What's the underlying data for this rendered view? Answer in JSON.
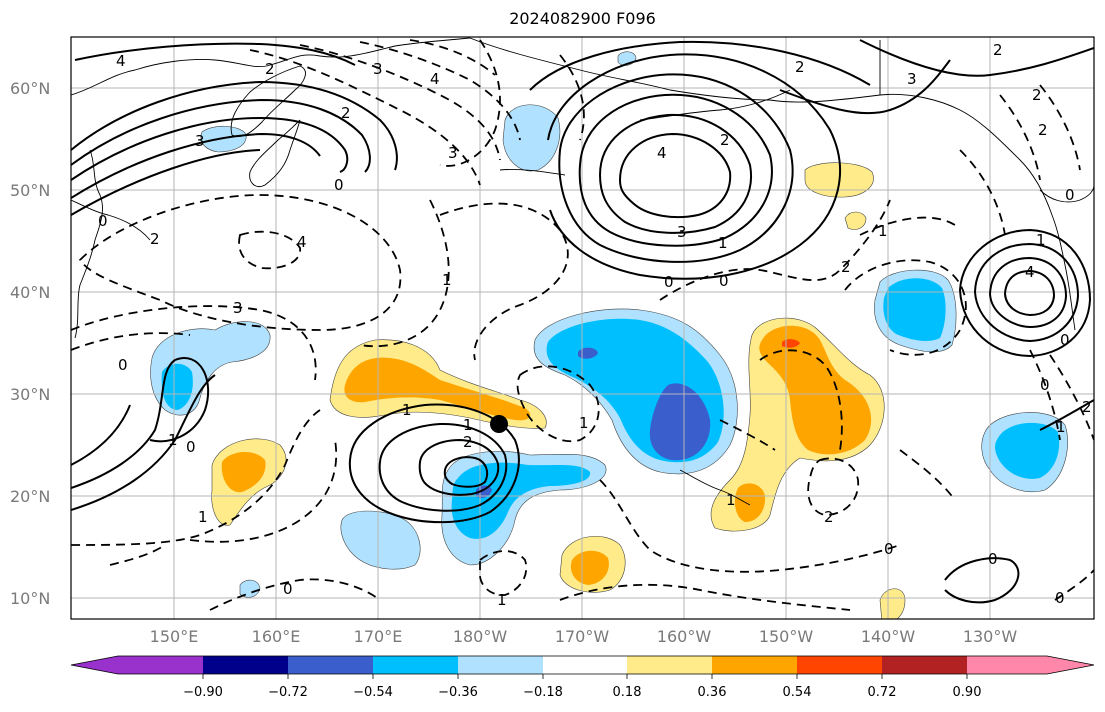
{
  "title": "2024082900 F096",
  "map": {
    "lat_labels": [
      "60°N",
      "50°N",
      "40°N",
      "30°N",
      "20°N",
      "10°N"
    ],
    "lon_labels": [
      "150°E",
      "160°E",
      "170°E",
      "180°W",
      "170°W",
      "160°W",
      "150°W",
      "140°W",
      "130°W"
    ],
    "contour_labels": [
      "4",
      "2",
      "3",
      "4",
      "2",
      "3",
      "0",
      "2",
      "3",
      "0",
      "2",
      "4",
      "2",
      "3",
      "1",
      "2",
      "4",
      "3",
      "1",
      "0",
      "0",
      "3",
      "2",
      "1",
      "1",
      "0",
      "4",
      "2",
      "0",
      "2",
      "0",
      "0",
      "1",
      "0",
      "1",
      "2",
      "1",
      "1",
      "1",
      "2",
      "0",
      "1",
      "0",
      "1",
      "0",
      "2",
      "0",
      "1"
    ],
    "marker": "storm-center"
  },
  "colorbar": {
    "ticks": [
      "−0.90",
      "−0.72",
      "−0.54",
      "−0.36",
      "−0.18",
      "0.18",
      "0.36",
      "0.54",
      "0.72",
      "0.90"
    ],
    "colors": [
      "#9932cc",
      "#00008b",
      "#3a5fcd",
      "#00bfff",
      "#b0e2ff",
      "#ffffff",
      "#ffeb8a",
      "#ffa500",
      "#ff4500",
      "#b22222",
      "#ff88aa"
    ]
  },
  "palette": {
    "neg_deep": "#3a5fcd",
    "neg_mid": "#00bfff",
    "neg_light": "#b0e2ff",
    "pos_light": "#ffeb8a",
    "pos_mid": "#ffa500",
    "pos_strong": "#ff4500"
  }
}
